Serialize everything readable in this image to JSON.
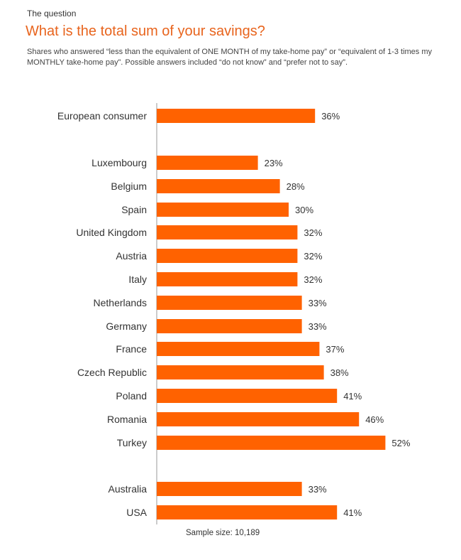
{
  "header": {
    "kicker": "The question",
    "title": "What is the total sum of your savings?",
    "subtitle": "Shares who answered “less than the equivalent of ONE MONTH of my take-home pay” or “equivalent of 1-3 times my MONTHLY take-home pay”. Possible answers included “do not know” and “prefer not to say”."
  },
  "footer": {
    "sample_size": "Sample size: 10,189"
  },
  "chart_data": {
    "type": "bar",
    "orientation": "horizontal",
    "bar_color": "#ff6200",
    "value_suffix": "%",
    "xlim": [
      0,
      60
    ],
    "grid": false,
    "categories": [
      "European consumer",
      "Luxembourg",
      "Belgium",
      "Spain",
      "United Kingdom",
      "Austria",
      "Italy",
      "Netherlands",
      "Germany",
      "France",
      "Czech Republic",
      "Poland",
      "Romania",
      "Turkey",
      "Australia",
      "USA"
    ],
    "values": [
      36,
      23,
      28,
      30,
      32,
      32,
      32,
      33,
      33,
      37,
      38,
      41,
      46,
      52,
      33,
      41
    ],
    "data_labels": [
      "36%",
      "23%",
      "28%",
      "30%",
      "32%",
      "32%",
      "32%",
      "33%",
      "33%",
      "37%",
      "38%",
      "41%",
      "46%",
      "52%",
      "33%",
      "41%"
    ]
  }
}
